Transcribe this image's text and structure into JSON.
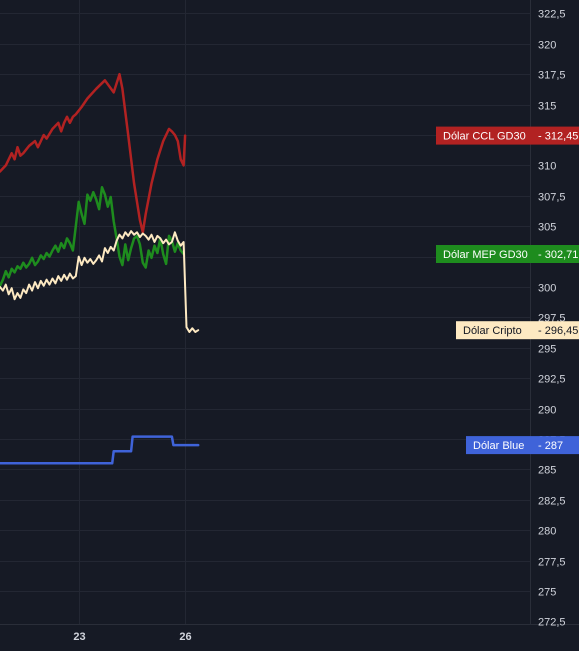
{
  "chart_data": {
    "type": "line",
    "title": "",
    "xlabel": "",
    "ylabel": "",
    "ylim": [
      272.5,
      323.5
    ],
    "x_ticks": [
      "23",
      "26"
    ],
    "y_ticks": [
      275,
      277.5,
      280,
      282.5,
      285,
      287.5,
      290,
      292.5,
      295,
      297.5,
      300,
      302.5,
      305,
      307.5,
      310,
      312.5,
      315,
      317.5,
      320,
      322.5
    ],
    "y_tick_labels": [
      "275",
      "277,5",
      "280",
      "282,5",
      "285",
      "287,5",
      "290",
      "292,5",
      "295",
      "297,5",
      "300",
      "302,5",
      "305",
      "307,5",
      "310",
      "312,5",
      "315",
      "317,5",
      "320",
      "322,5"
    ],
    "grid": true,
    "x_axis": {
      "min": 0,
      "max": 70,
      "tick_positions": [
        27,
        63.5
      ]
    },
    "series": [
      {
        "name": "Dólar CCL GD30",
        "color": "#b22222",
        "last_value": 312.45,
        "last_label": "312,45",
        "x": [
          0,
          2,
          4,
          5,
          6,
          7,
          8,
          10,
          12,
          13,
          14,
          15,
          16,
          18,
          20,
          21,
          22,
          23,
          24,
          25,
          26,
          27,
          28,
          30,
          33,
          36,
          39,
          41,
          42,
          44,
          46,
          48,
          49,
          50,
          52,
          54,
          56,
          58,
          59,
          60,
          61,
          62,
          63,
          63.5
        ],
        "y": [
          309.5,
          310,
          311,
          310.5,
          311.5,
          310.8,
          311,
          311.6,
          312,
          311.5,
          312,
          312.5,
          312.2,
          313,
          313.5,
          312.8,
          313.5,
          314,
          313.5,
          314,
          314.2,
          314.5,
          314.8,
          315.5,
          316.3,
          317,
          316,
          317.5,
          316.3,
          312.5,
          308.5,
          305.5,
          304.5,
          306,
          308.5,
          310.5,
          312,
          313,
          312.8,
          312.5,
          312,
          310.5,
          310,
          312.45
        ]
      },
      {
        "name": "Dólar MEP GD30",
        "color": "#1e8c1e",
        "last_value": 302.71,
        "last_label": "302,71",
        "x": [
          0,
          1,
          2,
          3,
          4,
          5,
          6,
          7,
          8,
          9,
          10,
          11,
          12,
          13,
          14,
          15,
          16,
          17,
          18,
          19,
          20,
          21,
          22,
          23,
          24,
          25,
          26,
          27,
          28,
          29,
          30,
          31,
          32,
          33,
          34,
          35,
          36,
          37,
          38,
          39,
          40,
          41,
          42,
          43,
          44,
          45,
          46,
          47,
          48,
          49,
          50,
          51,
          52,
          53,
          54,
          55,
          56,
          57,
          58,
          59,
          60,
          61,
          62,
          63
        ],
        "y": [
          300.1,
          300.6,
          301.3,
          300.8,
          301.5,
          301.2,
          301.7,
          301.5,
          302.0,
          301.6,
          301.9,
          302.4,
          301.8,
          302.1,
          302.6,
          302.3,
          302.8,
          302.5,
          303.0,
          303.4,
          302.9,
          303.6,
          303.2,
          304.0,
          303.6,
          303.0,
          305.0,
          307.0,
          306.0,
          305.2,
          307.6,
          307.1,
          307.8,
          307.2,
          306.4,
          308.2,
          307.6,
          306.6,
          307.4,
          305.4,
          304.0,
          302.5,
          301.8,
          303.5,
          302.2,
          303.2,
          304.0,
          304.2,
          303.5,
          302.0,
          301.6,
          303.0,
          302.4,
          303.4,
          302.8,
          304.0,
          302.7,
          301.9,
          304.2,
          303.8,
          302.9,
          303.6,
          303.0,
          302.71
        ]
      },
      {
        "name": "Dólar Cripto",
        "color": "#fde9c2",
        "last_value": 296.45,
        "last_label": "296,45",
        "x": [
          0,
          1,
          2,
          3,
          4,
          5,
          6,
          7,
          8,
          9,
          10,
          11,
          12,
          13,
          14,
          15,
          16,
          17,
          18,
          19,
          20,
          21,
          22,
          23,
          24,
          25,
          26,
          27,
          28,
          29,
          30,
          31,
          32,
          33,
          34,
          35,
          36,
          37,
          38,
          39,
          40,
          41,
          42,
          43,
          44,
          45,
          46,
          47,
          48,
          49,
          50,
          51,
          52,
          53,
          54,
          55,
          56,
          57,
          58,
          59,
          60,
          61,
          62,
          63,
          64,
          65,
          66,
          67,
          68
        ],
        "y": [
          300.0,
          299.7,
          300.2,
          299.4,
          299.9,
          299.0,
          299.5,
          299.1,
          299.8,
          299.5,
          300.2,
          299.7,
          300.4,
          299.9,
          300.5,
          300.1,
          300.6,
          300.2,
          300.7,
          300.3,
          300.9,
          300.5,
          301.0,
          300.6,
          301.1,
          300.7,
          300.9,
          302.5,
          301.8,
          302.4,
          302.0,
          302.3,
          301.9,
          302.2,
          302.6,
          302.1,
          303.2,
          302.8,
          303.3,
          303.0,
          303.8,
          304.3,
          304.0,
          304.5,
          304.2,
          304.6,
          304.3,
          304.5,
          304.1,
          304.4,
          304.2,
          303.9,
          304.3,
          303.7,
          304.2,
          304.0,
          303.6,
          303.9,
          303.5,
          303.7,
          304.5,
          303.8,
          303.4,
          303.7,
          296.7,
          296.3,
          296.6,
          296.3,
          296.45
        ]
      },
      {
        "name": "Dólar Blue",
        "color": "#3f63d9",
        "last_value": 287,
        "last_label": "287",
        "x": [
          0,
          38.5,
          39,
          45,
          45.5,
          59,
          59.5,
          68
        ],
        "y": [
          285.5,
          285.5,
          286.5,
          286.5,
          287.7,
          287.7,
          287,
          287
        ]
      }
    ]
  }
}
